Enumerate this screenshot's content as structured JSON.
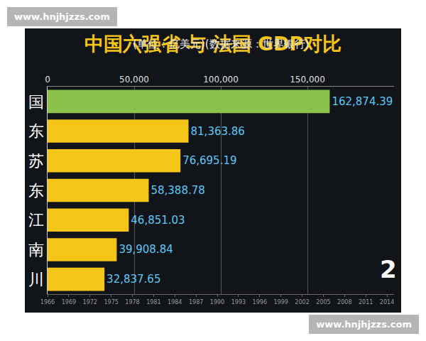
{
  "chart_data": {
    "type": "bar",
    "orientation": "horizontal",
    "title": "中国六强省 与 法国 GDP对比",
    "subtitle": "(单位：亿美元)(数据来源：世界银行)",
    "categories": [
      "国",
      "东",
      "苏",
      "东",
      "江",
      "南",
      "川"
    ],
    "values": [
      162874.39,
      81363.86,
      76695.19,
      58388.78,
      46851.03,
      39908.84,
      32837.65
    ],
    "value_labels": [
      "162,874.39",
      "81,363.86",
      "76,695.19",
      "58,388.78",
      "46,851.03",
      "39,908.84",
      "32,837.65"
    ],
    "colors": [
      "#8bc34a",
      "#f5c518",
      "#f5c518",
      "#f5c518",
      "#f5c518",
      "#f5c518",
      "#f5c518"
    ],
    "data_labels": true,
    "grid": true,
    "xlim": [
      0,
      200000
    ],
    "xticks": [
      0,
      {
        "value": 50000,
        "label": "50,000"
      },
      {
        "value": 100000,
        "label": "100,000"
      },
      {
        "value": 150000,
        "label": "150,000"
      }
    ],
    "x2lim": [
      1966,
      2015
    ],
    "x2ticks": [
      1966,
      1969,
      1972,
      1975,
      1978,
      1981,
      1984,
      1987,
      1990,
      1993,
      1996,
      1999,
      2002,
      2005,
      2008,
      2011,
      2014
    ],
    "annotations": [
      "2"
    ]
  },
  "watermarks": [
    "www.hnjhjzzs.com",
    "www.hnjhjzzs.com"
  ]
}
